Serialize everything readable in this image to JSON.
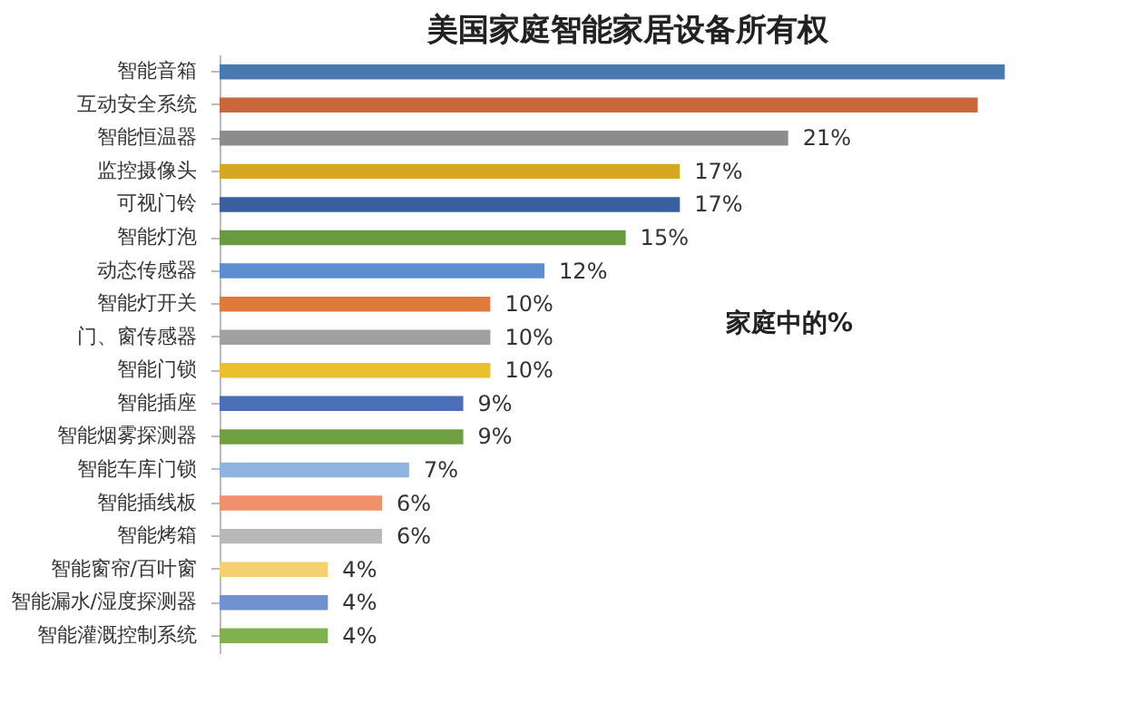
{
  "chart_data": {
    "type": "bar",
    "orientation": "horizontal",
    "title": "美国家庭智能家居设备所有权",
    "categories": [
      "智能音箱",
      "互动安全系统",
      "智能恒温器",
      "监控摄像头",
      "可视门铃",
      "智能灯泡",
      "动态传感器",
      "智能灯开关",
      "门、窗传感器",
      "智能门锁",
      "智能插座",
      "智能烟雾探测器",
      "智能车库门锁",
      "智能插线板",
      "智能烤箱",
      "智能窗帘/百叶窗",
      "智能漏水/湿度探测器",
      "智能灌溉控制系统"
    ],
    "values": [
      29,
      28,
      21,
      17,
      17,
      15,
      12,
      10,
      10,
      10,
      9,
      9,
      7,
      6,
      6,
      4,
      4,
      4
    ],
    "value_labels": [
      null,
      null,
      "21%",
      "17%",
      "17%",
      "15%",
      "12%",
      "10%",
      "10%",
      "10%",
      "9%",
      "9%",
      "7%",
      "6%",
      "6%",
      "4%",
      "4%",
      "4%"
    ],
    "colors": [
      "#4a78b0",
      "#c8683a",
      "#8c8c8c",
      "#d4a820",
      "#3a5f9e",
      "#6a9a40",
      "#5a8ed0",
      "#e07a3a",
      "#a0a0a0",
      "#e8c030",
      "#4a6fb8",
      "#6fa040",
      "#8fb4e0",
      "#f0906a",
      "#b8b8b8",
      "#f5d070",
      "#7090d0",
      "#80b050"
    ],
    "annotations": [
      "家庭中的%"
    ]
  }
}
